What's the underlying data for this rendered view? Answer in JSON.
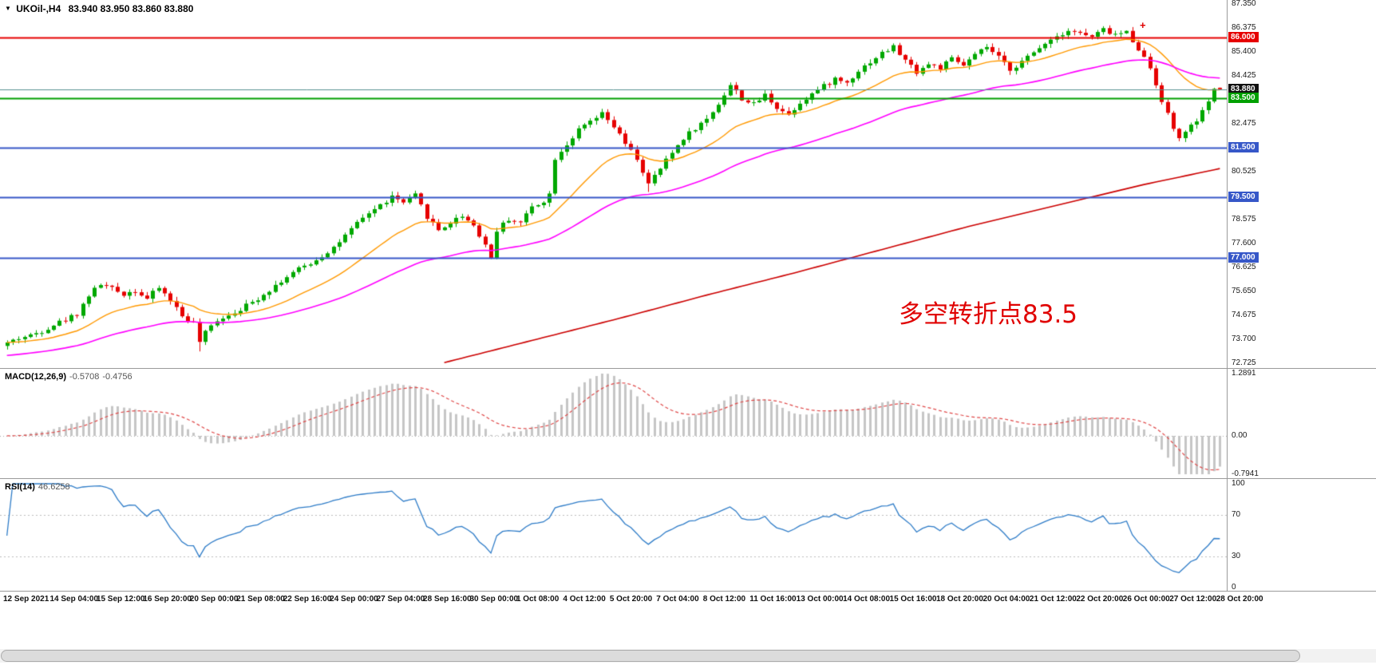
{
  "header": {
    "dropdown_icon": "▼",
    "symbol_timeframe": "UKOil-,H4",
    "ohlc": "83.940 83.950 83.860 83.880"
  },
  "annotation": {
    "text": "多空转折点83.5",
    "color": "#e00000"
  },
  "marker_plus": {
    "text": "+",
    "color": "#e00000"
  },
  "chart_data": {
    "type": "candlestick",
    "symbol": "UKOil-",
    "timeframe": "H4",
    "ohlc_display": {
      "open": "83.940",
      "high": "83.950",
      "low": "83.860",
      "close": "83.880"
    },
    "bar_count": 209,
    "bars_per_label": 8,
    "last_candle": [
      83.94,
      83.95,
      83.86,
      83.88
    ],
    "price_path": [
      [
        0,
        73.55
      ],
      [
        2,
        73.75
      ],
      [
        4,
        73.85
      ],
      [
        6,
        74.05
      ],
      [
        8,
        74.3
      ],
      [
        10,
        74.5
      ],
      [
        12,
        74.75
      ],
      [
        14,
        75.5
      ],
      [
        16,
        75.95
      ],
      [
        18,
        75.75
      ],
      [
        20,
        75.55
      ],
      [
        22,
        75.7
      ],
      [
        24,
        75.35
      ],
      [
        26,
        75.8
      ],
      [
        28,
        75.3
      ],
      [
        30,
        74.65
      ],
      [
        32,
        74.35
      ],
      [
        33,
        73.6
      ],
      [
        34,
        73.95
      ],
      [
        36,
        74.5
      ],
      [
        38,
        74.7
      ],
      [
        40,
        74.95
      ],
      [
        42,
        75.2
      ],
      [
        44,
        75.55
      ],
      [
        46,
        75.9
      ],
      [
        48,
        76.25
      ],
      [
        50,
        76.55
      ],
      [
        52,
        76.8
      ],
      [
        54,
        77.1
      ],
      [
        56,
        77.45
      ],
      [
        58,
        77.9
      ],
      [
        60,
        78.4
      ],
      [
        62,
        78.85
      ],
      [
        64,
        79.15
      ],
      [
        66,
        79.5
      ],
      [
        68,
        79.25
      ],
      [
        70,
        79.55
      ],
      [
        72,
        78.7
      ],
      [
        74,
        78.15
      ],
      [
        76,
        78.45
      ],
      [
        78,
        78.75
      ],
      [
        80,
        78.35
      ],
      [
        82,
        77.55
      ],
      [
        83,
        77.0
      ],
      [
        84,
        78.15
      ],
      [
        86,
        78.6
      ],
      [
        88,
        78.45
      ],
      [
        90,
        79.1
      ],
      [
        92,
        79.35
      ],
      [
        93,
        79.6
      ],
      [
        94,
        81.1
      ],
      [
        96,
        81.65
      ],
      [
        98,
        82.2
      ],
      [
        100,
        82.55
      ],
      [
        102,
        82.85
      ],
      [
        104,
        82.35
      ],
      [
        106,
        81.65
      ],
      [
        108,
        81.05
      ],
      [
        110,
        80.0
      ],
      [
        112,
        80.65
      ],
      [
        114,
        81.3
      ],
      [
        116,
        81.9
      ],
      [
        118,
        82.3
      ],
      [
        120,
        82.65
      ],
      [
        122,
        83.3
      ],
      [
        124,
        84.05
      ],
      [
        126,
        83.5
      ],
      [
        128,
        83.25
      ],
      [
        130,
        83.65
      ],
      [
        132,
        83.15
      ],
      [
        134,
        82.85
      ],
      [
        136,
        83.35
      ],
      [
        138,
        83.7
      ],
      [
        140,
        84.0
      ],
      [
        142,
        84.3
      ],
      [
        144,
        84.15
      ],
      [
        146,
        84.65
      ],
      [
        148,
        85.0
      ],
      [
        150,
        85.35
      ],
      [
        152,
        85.6
      ],
      [
        154,
        85.05
      ],
      [
        156,
        84.6
      ],
      [
        158,
        84.9
      ],
      [
        160,
        84.75
      ],
      [
        162,
        85.1
      ],
      [
        164,
        84.85
      ],
      [
        166,
        85.25
      ],
      [
        168,
        85.6
      ],
      [
        170,
        85.15
      ],
      [
        172,
        84.7
      ],
      [
        174,
        85.0
      ],
      [
        176,
        85.35
      ],
      [
        178,
        85.8
      ],
      [
        180,
        86.05
      ],
      [
        182,
        86.3
      ],
      [
        184,
        86.15
      ],
      [
        186,
        86.0
      ],
      [
        188,
        86.3
      ],
      [
        190,
        86.1
      ],
      [
        192,
        86.2
      ],
      [
        194,
        85.55
      ],
      [
        196,
        84.75
      ],
      [
        198,
        83.45
      ],
      [
        200,
        82.25
      ],
      [
        201,
        81.95
      ],
      [
        202,
        82.1
      ],
      [
        204,
        82.6
      ],
      [
        206,
        83.3
      ],
      [
        207,
        83.95
      ],
      [
        208,
        83.88
      ]
    ],
    "style": {
      "up_color": "#00A800",
      "down_color": "#E60000",
      "background": "#FFFFFF"
    },
    "y_axis": {
      "max": 87.35,
      "min": 72.725,
      "ticks": [
        {
          "v": 87.35,
          "t": "87.350"
        },
        {
          "v": 86.375,
          "t": "86.375"
        },
        {
          "v": 85.4,
          "t": "85.400"
        },
        {
          "v": 84.425,
          "t": "84.425"
        },
        {
          "v": 82.475,
          "t": "82.475"
        },
        {
          "v": 80.525,
          "t": "80.525"
        },
        {
          "v": 78.575,
          "t": "78.575"
        },
        {
          "v": 77.6,
          "t": "77.600"
        },
        {
          "v": 76.625,
          "t": "76.625"
        },
        {
          "v": 75.65,
          "t": "75.650"
        },
        {
          "v": 74.675,
          "t": "74.675"
        },
        {
          "v": 73.7,
          "t": "73.700"
        },
        {
          "v": 72.725,
          "t": "72.725"
        }
      ],
      "price_labels": [
        {
          "v": 86.0,
          "t": "86.000",
          "bg": "#E60000"
        },
        {
          "v": 83.88,
          "t": "83.880",
          "bg": "#111111"
        },
        {
          "v": 83.5,
          "t": "83.500",
          "bg": "#00A000"
        },
        {
          "v": 81.5,
          "t": "81.500",
          "bg": "#3657C8"
        },
        {
          "v": 79.5,
          "t": "79.500",
          "bg": "#3657C8"
        },
        {
          "v": 77.0,
          "t": "77.000",
          "bg": "#3657C8"
        }
      ]
    },
    "levels": [
      {
        "v": 86.0,
        "color": "#E60000",
        "w": 2
      },
      {
        "v": 83.88,
        "color": "#569090",
        "w": 1
      },
      {
        "v": 83.5,
        "color": "#00A000",
        "w": 2
      },
      {
        "v": 81.5,
        "color": "#3657C8",
        "w": 2
      },
      {
        "v": 79.5,
        "color": "#3657C8",
        "w": 2
      },
      {
        "v": 77.0,
        "color": "#3657C8",
        "w": 2
      }
    ],
    "moving_averages": {
      "fast": {
        "period": 20,
        "color": "#FF9900"
      },
      "mid": {
        "period": 55,
        "color": "#FF00FF"
      },
      "slow": {
        "color": "#CC0000",
        "path": [
          [
            75,
            72.75
          ],
          [
            90,
            73.65
          ],
          [
            105,
            74.55
          ],
          [
            120,
            75.5
          ],
          [
            135,
            76.4
          ],
          [
            150,
            77.35
          ],
          [
            165,
            78.3
          ],
          [
            180,
            79.15
          ],
          [
            195,
            80.0
          ],
          [
            208,
            80.65
          ]
        ]
      }
    },
    "x_labels": [
      "12 Sep 2021",
      "14 Sep 04:00",
      "15 Sep 12:00",
      "16 Sep 20:00",
      "20 Sep 00:00",
      "21 Sep 08:00",
      "22 Sep 16:00",
      "24 Sep 00:00",
      "27 Sep 04:00",
      "28 Sep 16:00",
      "30 Sep 00:00",
      "1 Oct 08:00",
      "4 Oct 12:00",
      "5 Oct 20:00",
      "7 Oct 04:00",
      "8 Oct 12:00",
      "11 Oct 16:00",
      "13 Oct 00:00",
      "14 Oct 08:00",
      "15 Oct 16:00",
      "18 Oct 20:00",
      "20 Oct 04:00",
      "21 Oct 12:00",
      "22 Oct 20:00",
      "26 Oct 00:00",
      "27 Oct 12:00",
      "28 Oct 20:00"
    ]
  },
  "indicators": {
    "macd": {
      "name": "MACD(12,26,9)",
      "value_main": "-0.5708",
      "value_signal": "-0.4756",
      "params": [
        12,
        26,
        9
      ],
      "axis": {
        "max": 1.2891,
        "max_label": "1.2891",
        "zero_label": "0.00",
        "min": -0.7941,
        "min_label": "-0.7941"
      },
      "hist_color": "#C6C6C6",
      "signal_color": "#E04848"
    },
    "rsi": {
      "name": "RSI(14)",
      "value": "46.6258",
      "period": 14,
      "axis": {
        "max": 100,
        "max_label": "100",
        "min": 0,
        "min_label": "0",
        "levels": [
          70,
          30
        ]
      },
      "line_color": "#2E7CC8",
      "level_color": "#BDBDBD"
    }
  }
}
